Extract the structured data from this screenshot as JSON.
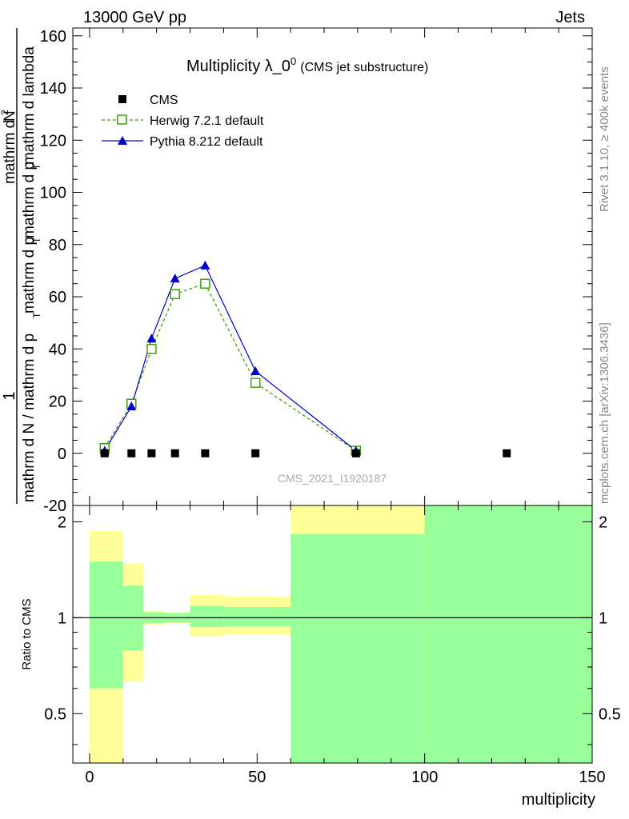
{
  "header": {
    "left": "13000 GeV pp",
    "right": "Jets"
  },
  "side_labels": {
    "rivet": "Rivet 3.1.10, ≥ 400k events",
    "mcplots": "mcplots.cern.ch [arXiv:1306.3436]"
  },
  "watermark": "CMS_2021_I1920187",
  "colors": {
    "cms": "#000000",
    "herwig": "#339900",
    "pythia": "#0000cc",
    "band_inner": "#99ff99",
    "band_outer": "#ffff99"
  },
  "chart_data": [
    {
      "type": "line",
      "title_main": "Multiplicity λ_0",
      "title_sup": "0",
      "title_sub": "(CMS jet substructure)",
      "ylabel_numerator": "1",
      "ylabel_denominator": "mathrm d N / mathrm d p",
      "ylabel_denominator_sub": "T",
      "ylabel_lines": [
        "mathrm d N / mathrm d p_T mathrm d p_T mathrm d lambda",
        "mathrm d²N"
      ],
      "ylabel_text_a": "mathrm d N / mathrm d p",
      "ylabel_text_b": "mathrm d p",
      "ylabel_text_c": "mathrm d p",
      "ylabel_text_d": "mathrm d lambda",
      "ylabel_text_e": "mathrm d",
      "ylabel_text_f": "N",
      "ylabel_sub_t": "T",
      "ylabel_sup_2": "2",
      "xlim": [
        -5,
        150
      ],
      "ylim": [
        -20,
        163
      ],
      "yticks": [
        -20,
        0,
        20,
        40,
        60,
        80,
        100,
        120,
        140,
        160
      ],
      "legend": [
        "CMS",
        "Herwig 7.2.1 default",
        "Pythia 8.212 default"
      ],
      "series": [
        {
          "name": "CMS",
          "marker": "square-filled",
          "x": [
            4.5,
            12.5,
            18.5,
            25.5,
            34.5,
            49.5,
            79.5,
            124.5
          ],
          "y": [
            0,
            0,
            0,
            0,
            0,
            0,
            0,
            0
          ]
        },
        {
          "name": "Herwig 7.2.1 default",
          "marker": "square-open",
          "line": "dashed",
          "x": [
            4.5,
            12.5,
            18.5,
            25.5,
            34.5,
            49.5,
            79.5
          ],
          "y": [
            2,
            19,
            40,
            61,
            65,
            27,
            1
          ],
          "yerr": [
            0.5,
            1,
            1.2,
            1.5,
            1.5,
            1,
            0.3
          ]
        },
        {
          "name": "Pythia 8.212 default",
          "marker": "triangle-filled",
          "line": "solid",
          "x": [
            4.5,
            12.5,
            18.5,
            25.5,
            34.5,
            49.5,
            79.5
          ],
          "y": [
            1,
            18,
            44,
            67,
            72,
            31.5,
            1
          ],
          "yerr": [
            0.4,
            1,
            1.2,
            1.5,
            1.5,
            1,
            0.3
          ]
        }
      ]
    },
    {
      "type": "area",
      "ylabel": "Ratio to CMS",
      "xlabel": "multiplicity",
      "xlim": [
        -5,
        150
      ],
      "ylim": [
        0.35,
        2.25
      ],
      "xticks": [
        0,
        50,
        100,
        150
      ],
      "yticks": [
        0.5,
        1,
        2
      ],
      "reference": 1,
      "bins": [
        {
          "lo": 0,
          "hi": 10,
          "inner": [
            0.6,
            1.5
          ],
          "outer": [
            0.35,
            1.87
          ]
        },
        {
          "lo": 10,
          "hi": 16,
          "inner": [
            0.79,
            1.26
          ],
          "outer": [
            0.63,
            1.48
          ]
        },
        {
          "lo": 16,
          "hi": 22,
          "inner": [
            0.96,
            1.04
          ],
          "outer": [
            0.95,
            1.05
          ]
        },
        {
          "lo": 22,
          "hi": 30,
          "inner": [
            0.965,
            1.035
          ],
          "outer": [
            0.96,
            1.04
          ]
        },
        {
          "lo": 30,
          "hi": 40,
          "inner": [
            0.935,
            1.09
          ],
          "outer": [
            0.875,
            1.18
          ]
        },
        {
          "lo": 40,
          "hi": 60,
          "inner": [
            0.94,
            1.08
          ],
          "outer": [
            0.885,
            1.165
          ]
        },
        {
          "lo": 60,
          "hi": 100,
          "inner": [
            0.35,
            1.83
          ],
          "outer": [
            0.35,
            2.25
          ]
        },
        {
          "lo": 100,
          "hi": 150,
          "inner": [
            0.35,
            2.25
          ],
          "outer": [
            0.35,
            2.25
          ]
        }
      ]
    }
  ]
}
